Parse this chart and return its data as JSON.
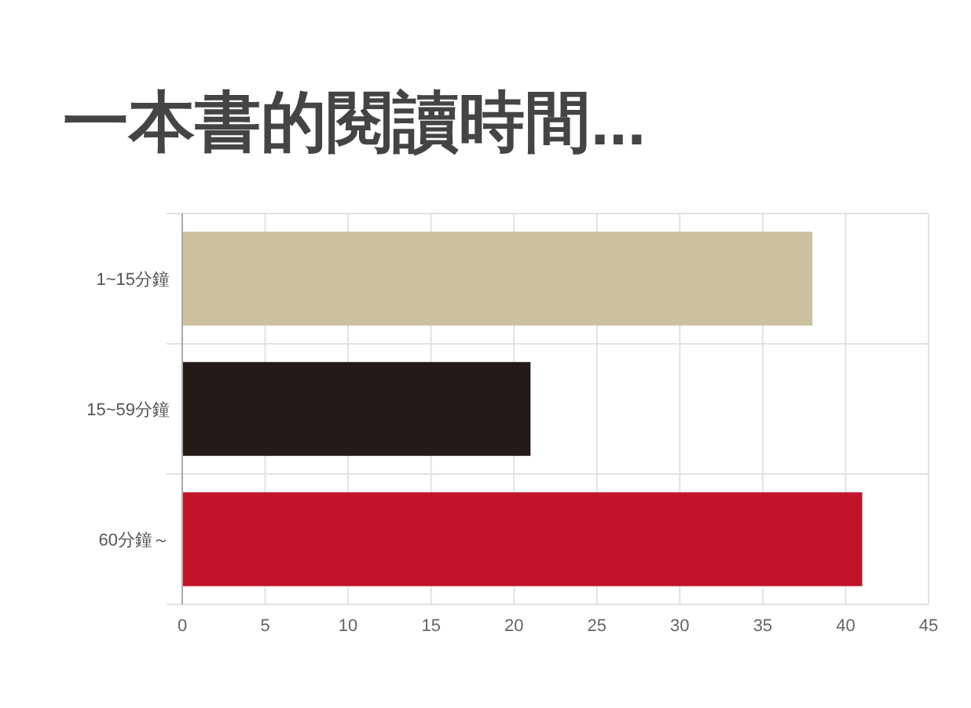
{
  "chart_data": {
    "type": "bar",
    "orientation": "horizontal",
    "title": "一本書的閱讀時間...",
    "categories": [
      "1~15分鐘",
      "15~59分鐘",
      "60分鐘～"
    ],
    "values": [
      38,
      21,
      41
    ],
    "colors": [
      "#cdc09e",
      "#241a18",
      "#c1132a"
    ],
    "xlim": [
      0,
      45
    ],
    "xticks": [
      0,
      5,
      10,
      15,
      20,
      25,
      30,
      35,
      40,
      45
    ],
    "grid": true
  }
}
